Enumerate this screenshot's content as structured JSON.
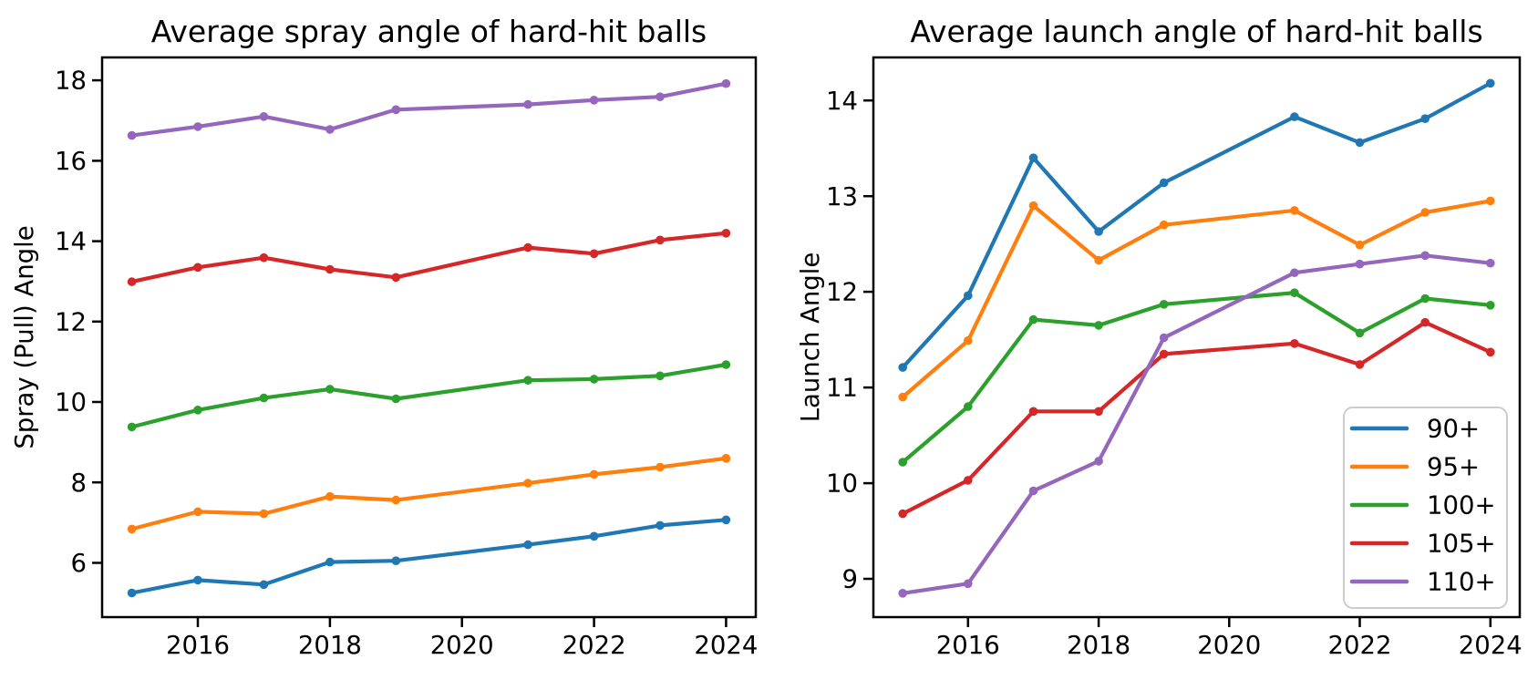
{
  "figure": {
    "background": "#ffffff",
    "spine_color": "#000000",
    "text_color": "#000000"
  },
  "chart_data": [
    {
      "type": "line",
      "title": "Average spray angle of hard-hit balls",
      "xlabel": "",
      "ylabel": "Spray (Pull) Angle",
      "x": [
        2015,
        2016,
        2017,
        2018,
        2019,
        2021,
        2022,
        2023,
        2024
      ],
      "series": [
        {
          "name": "90+",
          "color": "#1f77b4",
          "values": [
            5.25,
            5.57,
            5.46,
            6.02,
            6.05,
            6.45,
            6.66,
            6.93,
            7.07
          ]
        },
        {
          "name": "95+",
          "color": "#ff7f0e",
          "values": [
            6.84,
            7.27,
            7.22,
            7.65,
            7.56,
            7.98,
            8.2,
            8.38,
            8.6
          ]
        },
        {
          "name": "100+",
          "color": "#2ca02c",
          "values": [
            9.38,
            9.8,
            10.1,
            10.32,
            10.08,
            10.54,
            10.57,
            10.65,
            10.93
          ]
        },
        {
          "name": "105+",
          "color": "#d62728",
          "values": [
            12.99,
            13.35,
            13.59,
            13.3,
            13.1,
            13.84,
            13.69,
            14.03,
            14.2
          ]
        },
        {
          "name": "110+",
          "color": "#9467bd",
          "values": [
            16.63,
            16.85,
            17.1,
            16.78,
            17.27,
            17.4,
            17.51,
            17.59,
            17.92
          ]
        }
      ],
      "xlim": [
        2014.55,
        2024.45
      ],
      "ylim": [
        4.65,
        18.57
      ],
      "xticks": [
        2016,
        2018,
        2020,
        2022,
        2024
      ],
      "yticks": [
        6,
        8,
        10,
        12,
        14,
        16,
        18
      ],
      "grid": false,
      "legend": {
        "visible": false
      }
    },
    {
      "type": "line",
      "title": "Average launch angle of hard-hit balls",
      "xlabel": "",
      "ylabel": "Launch Angle",
      "x": [
        2015,
        2016,
        2017,
        2018,
        2019,
        2021,
        2022,
        2023,
        2024
      ],
      "series": [
        {
          "name": "90+",
          "color": "#1f77b4",
          "values": [
            11.21,
            11.96,
            13.4,
            12.63,
            13.14,
            13.83,
            13.56,
            13.81,
            14.18
          ]
        },
        {
          "name": "95+",
          "color": "#ff7f0e",
          "values": [
            10.9,
            11.49,
            12.9,
            12.33,
            12.7,
            12.85,
            12.49,
            12.83,
            12.95
          ]
        },
        {
          "name": "100+",
          "color": "#2ca02c",
          "values": [
            10.22,
            10.8,
            11.71,
            11.65,
            11.87,
            11.99,
            11.57,
            11.93,
            11.86
          ]
        },
        {
          "name": "105+",
          "color": "#d62728",
          "values": [
            9.68,
            10.03,
            10.75,
            10.75,
            11.35,
            11.46,
            11.24,
            11.68,
            11.37
          ]
        },
        {
          "name": "110+",
          "color": "#9467bd",
          "values": [
            8.85,
            8.95,
            9.92,
            10.23,
            11.52,
            12.2,
            12.29,
            12.38,
            12.3
          ]
        }
      ],
      "xlim": [
        2014.55,
        2024.45
      ],
      "ylim": [
        8.6,
        14.45
      ],
      "xticks": [
        2016,
        2018,
        2020,
        2022,
        2024
      ],
      "yticks": [
        9,
        10,
        11,
        12,
        13,
        14
      ],
      "grid": false,
      "legend": {
        "visible": true,
        "location": "lower right",
        "border_color": "#cccccc",
        "background": "#ffffff",
        "labels": [
          "90+",
          "95+",
          "100+",
          "105+",
          "110+"
        ]
      }
    }
  ]
}
